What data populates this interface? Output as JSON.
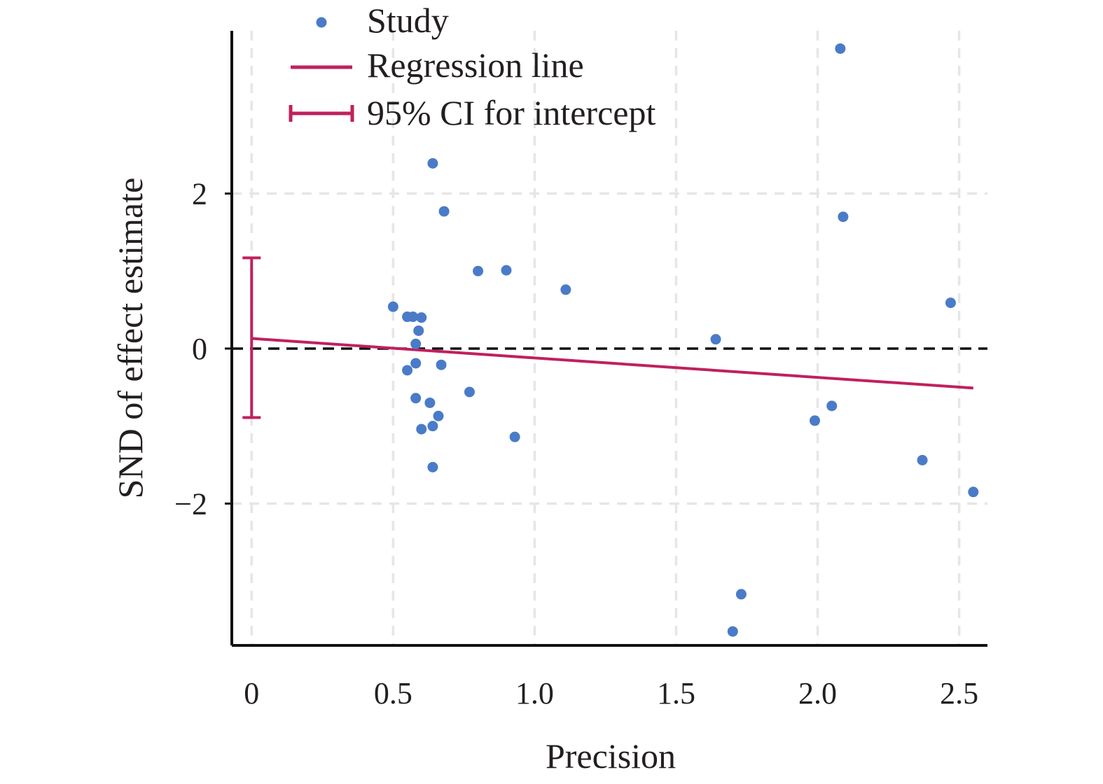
{
  "chart_data": {
    "type": "scatter",
    "xlabel": "Precision",
    "ylabel": "SND of effect estimate",
    "xlim": [
      -0.07,
      2.6
    ],
    "ylim": [
      -3.83,
      4.1
    ],
    "x_ticks": [
      {
        "value": 0,
        "label": "0"
      },
      {
        "value": 0.5,
        "label": "0.5"
      },
      {
        "value": 1.0,
        "label": "1.0"
      },
      {
        "value": 1.5,
        "label": "1.5"
      },
      {
        "value": 2.0,
        "label": "2.0"
      },
      {
        "value": 2.5,
        "label": "2.5"
      }
    ],
    "y_ticks": [
      {
        "value": 2,
        "label": "2"
      },
      {
        "value": 0,
        "label": "0"
      },
      {
        "value": -2,
        "label": "−2"
      }
    ],
    "grid": true,
    "zero_line": true,
    "legend_position": "top-left",
    "legend": [
      {
        "key": "study",
        "label": "Study"
      },
      {
        "key": "regression",
        "label": "Regression line"
      },
      {
        "key": "ci",
        "label": "95% CI for intercept"
      }
    ],
    "colors": {
      "study": "#4a7bc8",
      "regression": "#c0205d",
      "ci": "#c0205d",
      "grid": "#e6e6e6",
      "axis": "#111111",
      "zero_line": "#111111"
    },
    "series": [
      {
        "name": "Study",
        "points": [
          {
            "x": 2.08,
            "y": 3.87
          },
          {
            "x": 0.64,
            "y": 2.39
          },
          {
            "x": 0.68,
            "y": 1.77
          },
          {
            "x": 2.09,
            "y": 1.7
          },
          {
            "x": 0.8,
            "y": 1.0
          },
          {
            "x": 0.9,
            "y": 1.01
          },
          {
            "x": 1.11,
            "y": 0.76
          },
          {
            "x": 2.47,
            "y": 0.59
          },
          {
            "x": 0.5,
            "y": 0.54
          },
          {
            "x": 0.55,
            "y": 0.41
          },
          {
            "x": 0.57,
            "y": 0.41
          },
          {
            "x": 0.6,
            "y": 0.4
          },
          {
            "x": 0.59,
            "y": 0.23
          },
          {
            "x": 1.64,
            "y": 0.12
          },
          {
            "x": 0.58,
            "y": 0.06
          },
          {
            "x": 0.58,
            "y": -0.19
          },
          {
            "x": 0.67,
            "y": -0.21
          },
          {
            "x": 0.55,
            "y": -0.28
          },
          {
            "x": 0.77,
            "y": -0.56
          },
          {
            "x": 0.58,
            "y": -0.64
          },
          {
            "x": 0.63,
            "y": -0.7
          },
          {
            "x": 2.05,
            "y": -0.74
          },
          {
            "x": 0.66,
            "y": -0.87
          },
          {
            "x": 1.99,
            "y": -0.93
          },
          {
            "x": 0.64,
            "y": -1.0
          },
          {
            "x": 0.6,
            "y": -1.04
          },
          {
            "x": 0.93,
            "y": -1.14
          },
          {
            "x": 0.64,
            "y": -1.53
          },
          {
            "x": 2.37,
            "y": -1.44
          },
          {
            "x": 2.55,
            "y": -1.85
          },
          {
            "x": 1.73,
            "y": -3.17
          },
          {
            "x": 1.7,
            "y": -3.65
          }
        ]
      }
    ],
    "regression_line": {
      "x": [
        0,
        2.55
      ],
      "y": [
        0.13,
        -0.51
      ]
    },
    "intercept_ci": {
      "x": 0,
      "lower": -0.89,
      "upper": 1.17
    }
  }
}
